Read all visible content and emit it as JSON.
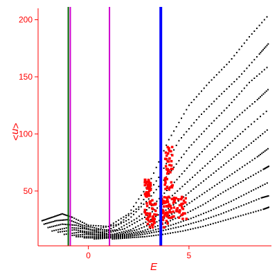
{
  "chart_data": {
    "type": "scatter",
    "title": "",
    "xlabel": "E",
    "ylabel": "<n>",
    "xlim": [
      -2.5,
      9.1
    ],
    "ylim": [
      2,
      210
    ],
    "x_ticks": [
      0,
      5
    ],
    "y_ticks": [
      50,
      100,
      150,
      200
    ],
    "grid": false,
    "vertical_lines": [
      {
        "x": -1.0,
        "color": "#006400"
      },
      {
        "x": -0.9,
        "color": "#cc00cc"
      },
      {
        "x": 1.05,
        "color": "#cc00cc"
      },
      {
        "x": 3.6,
        "color": "#0000ff"
      }
    ],
    "series": [
      {
        "color": "#000000",
        "families": [
          {
            "points": [
              [
                -2.3,
                24
              ],
              [
                -1.8,
                27
              ],
              [
                -1.3,
                30
              ],
              [
                -0.8,
                27
              ],
              [
                0.0,
                20
              ],
              [
                1.0,
                19
              ],
              [
                2.0,
                30
              ],
              [
                3.0,
                56
              ],
              [
                4.0,
                95
              ],
              [
                5.0,
                125
              ],
              [
                6.0,
                145
              ],
              [
                7.0,
                163
              ],
              [
                8.0,
                185
              ],
              [
                9.0,
                205
              ]
            ]
          },
          {
            "points": [
              [
                -2.2,
                21
              ],
              [
                -1.6,
                24
              ],
              [
                -1.0,
                25
              ],
              [
                -0.3,
                20
              ],
              [
                0.5,
                17
              ],
              [
                1.5,
                21
              ],
              [
                2.5,
                36
              ],
              [
                3.5,
                62
              ],
              [
                4.5,
                94
              ],
              [
                5.5,
                115
              ],
              [
                6.5,
                133
              ],
              [
                7.5,
                150
              ],
              [
                8.5,
                170
              ],
              [
                9.0,
                180
              ]
            ]
          },
          {
            "points": [
              [
                -2.0,
                18
              ],
              [
                -1.3,
                21
              ],
              [
                -0.6,
                20
              ],
              [
                0.2,
                16
              ],
              [
                1.0,
                16
              ],
              [
                2.0,
                25
              ],
              [
                3.0,
                43
              ],
              [
                4.0,
                65
              ],
              [
                5.0,
                88
              ],
              [
                6.0,
                107
              ],
              [
                7.0,
                125
              ],
              [
                8.0,
                145
              ],
              [
                9.0,
                160
              ]
            ]
          },
          {
            "points": [
              [
                -1.8,
                15
              ],
              [
                -1.0,
                18
              ],
              [
                -0.2,
                17
              ],
              [
                0.6,
                14
              ],
              [
                1.4,
                16
              ],
              [
                2.4,
                26
              ],
              [
                3.4,
                41
              ],
              [
                4.4,
                60
              ],
              [
                5.4,
                80
              ],
              [
                6.4,
                98
              ],
              [
                7.4,
                115
              ],
              [
                8.4,
                130
              ],
              [
                9.0,
                140
              ]
            ]
          },
          {
            "points": [
              [
                -1.5,
                14
              ],
              [
                -0.7,
                16
              ],
              [
                0.1,
                14
              ],
              [
                0.9,
                13
              ],
              [
                1.8,
                17
              ],
              [
                2.8,
                27
              ],
              [
                3.8,
                40
              ],
              [
                4.8,
                56
              ],
              [
                5.8,
                72
              ],
              [
                6.8,
                88
              ],
              [
                7.8,
                104
              ],
              [
                9.0,
                122
              ]
            ]
          },
          {
            "points": [
              [
                -1.2,
                12
              ],
              [
                -0.4,
                14
              ],
              [
                0.4,
                12
              ],
              [
                1.2,
                12
              ],
              [
                2.1,
                16
              ],
              [
                3.1,
                25
              ],
              [
                4.1,
                36
              ],
              [
                5.1,
                50
              ],
              [
                6.1,
                64
              ],
              [
                7.1,
                78
              ],
              [
                8.1,
                92
              ],
              [
                9.0,
                105
              ]
            ]
          },
          {
            "points": [
              [
                -0.9,
                11
              ],
              [
                -0.1,
                12
              ],
              [
                0.7,
                11
              ],
              [
                1.5,
                12
              ],
              [
                2.4,
                16
              ],
              [
                3.4,
                23
              ],
              [
                4.4,
                32
              ],
              [
                5.4,
                44
              ],
              [
                6.4,
                56
              ],
              [
                7.4,
                68
              ],
              [
                8.4,
                80
              ],
              [
                9.0,
                88
              ]
            ]
          },
          {
            "points": [
              [
                -0.6,
                10
              ],
              [
                0.2,
                10
              ],
              [
                1.0,
                10
              ],
              [
                1.8,
                12
              ],
              [
                2.7,
                15
              ],
              [
                3.7,
                21
              ],
              [
                4.7,
                29
              ],
              [
                5.7,
                38
              ],
              [
                6.7,
                49
              ],
              [
                7.7,
                59
              ],
              [
                8.7,
                69
              ],
              [
                9.0,
                72
              ]
            ]
          },
          {
            "points": [
              [
                -0.2,
                9
              ],
              [
                0.6,
                9
              ],
              [
                1.4,
                10
              ],
              [
                2.2,
                12
              ],
              [
                3.1,
                15
              ],
              [
                4.1,
                20
              ],
              [
                5.1,
                26
              ],
              [
                6.1,
                33
              ],
              [
                7.1,
                41
              ],
              [
                8.1,
                50
              ],
              [
                9.0,
                58
              ]
            ]
          },
          {
            "points": [
              [
                0.3,
                8
              ],
              [
                1.1,
                9
              ],
              [
                1.9,
                10
              ],
              [
                2.7,
                12
              ],
              [
                3.6,
                15
              ],
              [
                4.6,
                19
              ],
              [
                5.6,
                24
              ],
              [
                6.6,
                30
              ],
              [
                7.6,
                37
              ],
              [
                8.6,
                44
              ],
              [
                9.0,
                46
              ]
            ]
          },
          {
            "points": [
              [
                1.2,
                8
              ],
              [
                2.0,
                9
              ],
              [
                2.8,
                10
              ],
              [
                3.7,
                12
              ],
              [
                4.7,
                15
              ],
              [
                5.7,
                19
              ],
              [
                6.7,
                24
              ],
              [
                7.7,
                29
              ],
              [
                8.7,
                34
              ],
              [
                9.0,
                36
              ]
            ]
          }
        ]
      },
      {
        "color": "#ff0000",
        "clusters": [
          {
            "x": [
              2.8,
              3.4
            ],
            "y": [
              18,
              42
            ]
          },
          {
            "x": [
              3.6,
              4.1
            ],
            "y": [
              18,
              45
            ]
          },
          {
            "x": [
              4.0,
              4.9
            ],
            "y": [
              25,
              45
            ]
          },
          {
            "x": [
              2.8,
              3.1
            ],
            "y": [
              45,
              60
            ]
          },
          {
            "x": [
              3.8,
              4.2
            ],
            "y": [
              50,
              90
            ]
          }
        ]
      }
    ]
  }
}
